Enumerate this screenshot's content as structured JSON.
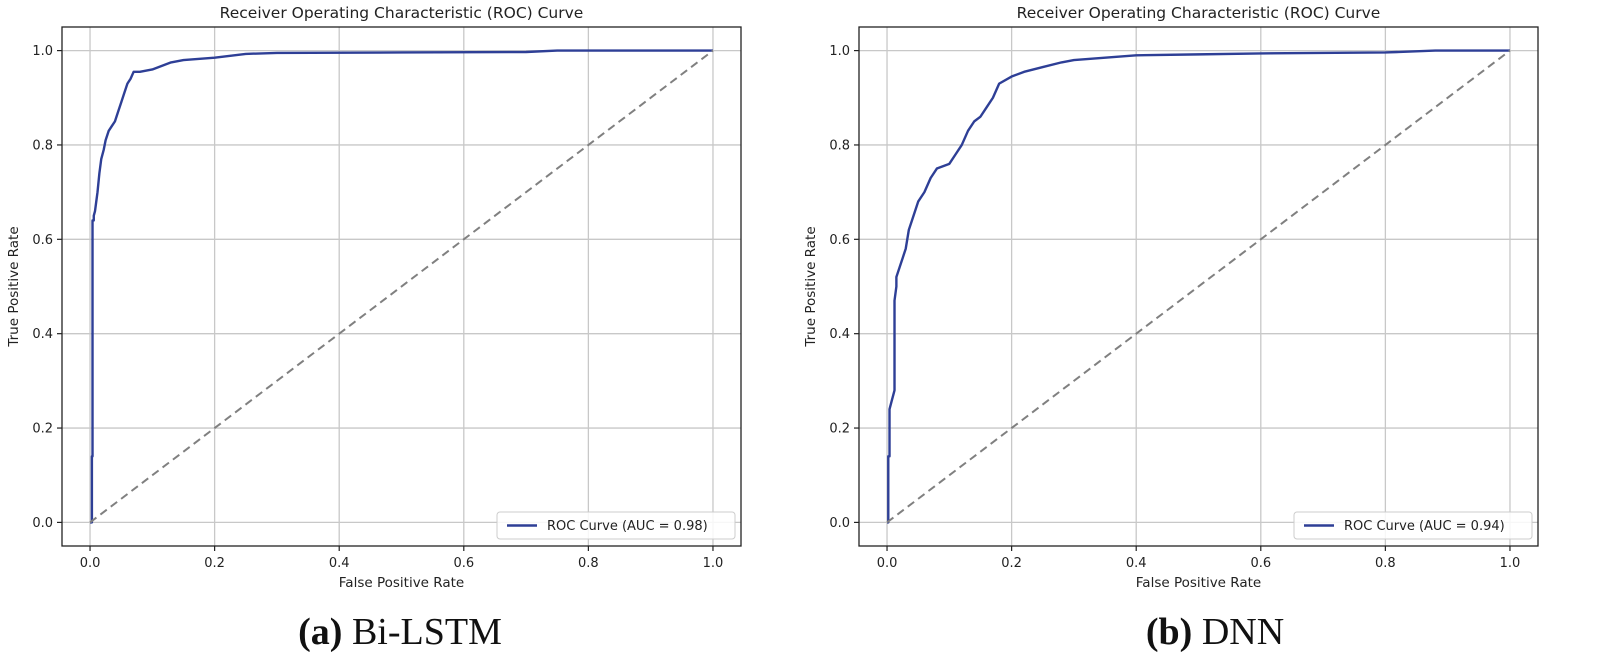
{
  "figure": {
    "captions": [
      {
        "tag": "(a)",
        "text": " Bi-LSTM"
      },
      {
        "tag": "(b)",
        "text": " DNN"
      }
    ]
  },
  "colors": {
    "roc_line": "#2e3f96",
    "chance_line": "#808080",
    "grid": "#c8c8c8",
    "axes": "#222222"
  },
  "chart_data": [
    {
      "type": "line",
      "title": "Receiver Operating Characteristic (ROC) Curve",
      "xlabel": "False Positive Rate",
      "ylabel": "True Positive Rate",
      "xlim": [
        -0.045,
        1.045
      ],
      "ylim": [
        -0.05,
        1.05
      ],
      "xticks": [
        0.0,
        0.2,
        0.4,
        0.6,
        0.8,
        1.0
      ],
      "yticks": [
        0.0,
        0.2,
        0.4,
        0.6,
        0.8,
        1.0
      ],
      "xtick_labels": [
        "0.0",
        "0.2",
        "0.4",
        "0.6",
        "0.8",
        "1.0"
      ],
      "ytick_labels": [
        "0.0",
        "0.2",
        "0.4",
        "0.6",
        "0.8",
        "1.0"
      ],
      "grid": true,
      "legend_position": "lower-right",
      "series": [
        {
          "name": "ROC Curve (AUC = 0.98)",
          "style": "solid",
          "x": [
            0.0,
            0.003,
            0.003,
            0.004,
            0.004,
            0.006,
            0.006,
            0.008,
            0.01,
            0.012,
            0.015,
            0.018,
            0.022,
            0.025,
            0.03,
            0.035,
            0.04,
            0.045,
            0.05,
            0.055,
            0.06,
            0.065,
            0.07,
            0.08,
            0.1,
            0.12,
            0.13,
            0.15,
            0.2,
            0.25,
            0.3,
            0.5,
            0.7,
            0.75,
            1.0
          ],
          "y": [
            0.0,
            0.0,
            0.14,
            0.14,
            0.64,
            0.64,
            0.65,
            0.66,
            0.68,
            0.7,
            0.74,
            0.77,
            0.79,
            0.81,
            0.83,
            0.84,
            0.85,
            0.87,
            0.89,
            0.91,
            0.93,
            0.94,
            0.955,
            0.955,
            0.96,
            0.97,
            0.975,
            0.98,
            0.985,
            0.993,
            0.995,
            0.996,
            0.997,
            1.0,
            1.0
          ]
        },
        {
          "name": "",
          "style": "dashed",
          "x": [
            0.0,
            1.0
          ],
          "y": [
            0.0,
            1.0
          ]
        }
      ]
    },
    {
      "type": "line",
      "title": "Receiver Operating Characteristic (ROC) Curve",
      "xlabel": "False Positive Rate",
      "ylabel": "True Positive Rate",
      "xlim": [
        -0.045,
        1.045
      ],
      "ylim": [
        -0.05,
        1.05
      ],
      "xticks": [
        0.0,
        0.2,
        0.4,
        0.6,
        0.8,
        1.0
      ],
      "yticks": [
        0.0,
        0.2,
        0.4,
        0.6,
        0.8,
        1.0
      ],
      "xtick_labels": [
        "0.0",
        "0.2",
        "0.4",
        "0.6",
        "0.8",
        "1.0"
      ],
      "ytick_labels": [
        "0.0",
        "0.2",
        "0.4",
        "0.6",
        "0.8",
        "1.0"
      ],
      "grid": true,
      "legend_position": "lower-right",
      "series": [
        {
          "name": "ROC Curve (AUC = 0.94)",
          "style": "solid",
          "x": [
            0.0,
            0.002,
            0.002,
            0.004,
            0.004,
            0.008,
            0.01,
            0.012,
            0.012,
            0.015,
            0.015,
            0.02,
            0.025,
            0.03,
            0.035,
            0.04,
            0.05,
            0.06,
            0.07,
            0.08,
            0.1,
            0.11,
            0.12,
            0.13,
            0.14,
            0.15,
            0.16,
            0.17,
            0.18,
            0.2,
            0.22,
            0.25,
            0.28,
            0.3,
            0.35,
            0.4,
            0.5,
            0.6,
            0.8,
            0.88,
            1.0
          ],
          "y": [
            0.0,
            0.0,
            0.14,
            0.14,
            0.24,
            0.26,
            0.27,
            0.28,
            0.47,
            0.5,
            0.52,
            0.54,
            0.56,
            0.58,
            0.62,
            0.64,
            0.68,
            0.7,
            0.73,
            0.75,
            0.76,
            0.78,
            0.8,
            0.83,
            0.85,
            0.86,
            0.88,
            0.9,
            0.93,
            0.945,
            0.955,
            0.965,
            0.975,
            0.98,
            0.985,
            0.99,
            0.992,
            0.994,
            0.996,
            1.0,
            1.0
          ]
        },
        {
          "name": "",
          "style": "dashed",
          "x": [
            0.0,
            1.0
          ],
          "y": [
            0.0,
            1.0
          ]
        }
      ]
    }
  ]
}
